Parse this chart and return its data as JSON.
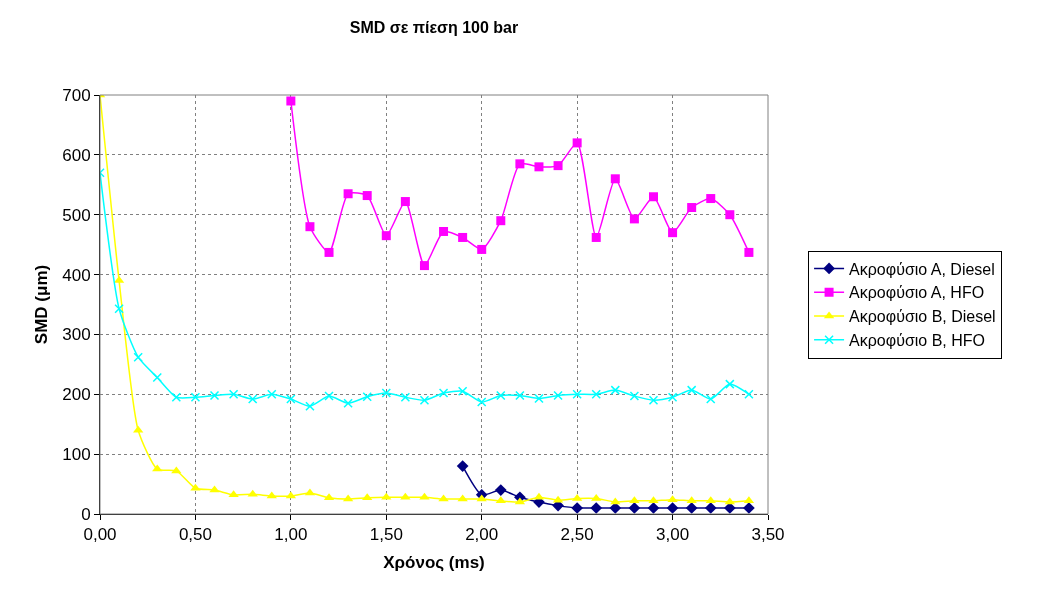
{
  "chart_data": {
    "type": "line",
    "title": "SMD σε πίεση 100 bar",
    "xlabel": "Χρόνος (ms)",
    "ylabel": "SMD (μm)",
    "x": [
      0,
      0.1,
      0.2,
      0.3,
      0.4,
      0.5,
      0.6,
      0.7,
      0.8,
      0.9,
      1.0,
      1.1,
      1.2,
      1.3,
      1.4,
      1.5,
      1.6,
      1.7,
      1.8,
      1.9,
      2.0,
      2.1,
      2.2,
      2.3,
      2.4,
      2.5,
      2.6,
      2.7,
      2.8,
      2.9,
      3.0,
      3.1,
      3.2,
      3.3,
      3.4
    ],
    "series": [
      {
        "name": "Ακροφύσιο Α, Diesel",
        "color": "#000080",
        "marker": "diamond",
        "values": [
          null,
          null,
          null,
          null,
          null,
          null,
          null,
          null,
          null,
          null,
          null,
          null,
          null,
          null,
          null,
          null,
          null,
          null,
          null,
          80,
          32,
          40,
          28,
          20,
          14,
          10,
          10,
          10,
          10,
          10,
          10,
          10,
          10,
          10,
          10
        ]
      },
      {
        "name": "Ακροφύσιο Α, HFO",
        "color": "#ff00ff",
        "marker": "square",
        "values": [
          null,
          null,
          null,
          null,
          null,
          null,
          null,
          null,
          null,
          null,
          690,
          480,
          437,
          535,
          532,
          465,
          522,
          415,
          472,
          462,
          442,
          490,
          585,
          580,
          582,
          620,
          462,
          560,
          493,
          530,
          470,
          512,
          527,
          500,
          437
        ]
      },
      {
        "name": "Ακροφύσιο Β, Diesel",
        "color": "#ffff00",
        "marker": "triangle",
        "values": [
          700,
          390,
          140,
          75,
          72,
          43,
          40,
          32,
          33,
          30,
          30,
          35,
          27,
          25,
          27,
          28,
          28,
          28,
          25,
          25,
          25,
          22,
          20,
          28,
          23,
          26,
          26,
          20,
          22,
          22,
          24,
          22,
          22,
          20,
          22
        ]
      },
      {
        "name": "Ακροφύσιο Β, HFO",
        "color": "#00ffff",
        "marker": "cross",
        "values": [
          570,
          343,
          262,
          228,
          195,
          195,
          198,
          200,
          192,
          200,
          192,
          180,
          197,
          185,
          196,
          202,
          195,
          190,
          202,
          205,
          187,
          198,
          198,
          193,
          198,
          200,
          200,
          207,
          197,
          190,
          195,
          207,
          192,
          217,
          200
        ]
      }
    ],
    "xlim": [
      0,
      3.5
    ],
    "xticks": [
      {
        "value": 0,
        "label": "0,00"
      },
      {
        "value": 0.5,
        "label": "0,50"
      },
      {
        "value": 1,
        "label": "1,00"
      },
      {
        "value": 1.5,
        "label": "1,50"
      },
      {
        "value": 2,
        "label": "2,00"
      },
      {
        "value": 2.5,
        "label": "2,50"
      },
      {
        "value": 3,
        "label": "3,00"
      },
      {
        "value": 3.5,
        "label": "3,50"
      }
    ],
    "ylim": [
      0,
      700
    ],
    "yticks": [
      0,
      100,
      200,
      300,
      400,
      500,
      600,
      700
    ],
    "grid": true,
    "legend": "right",
    "line_style": "solid"
  }
}
